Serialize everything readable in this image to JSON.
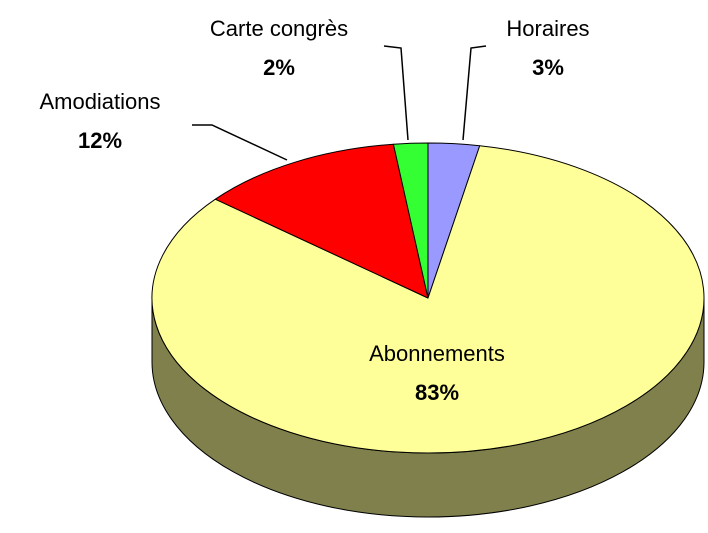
{
  "chart_data": {
    "type": "pie3d",
    "categories": [
      "Horaires",
      "Abonnements",
      "Amodiations",
      "Carte congrès"
    ],
    "values": [
      3,
      83,
      12,
      2
    ],
    "value_labels": [
      "3%",
      "83%",
      "12%",
      "2%"
    ],
    "colors": [
      "#9999ff",
      "#ffff99",
      "#ff0000",
      "#33ff33"
    ]
  }
}
